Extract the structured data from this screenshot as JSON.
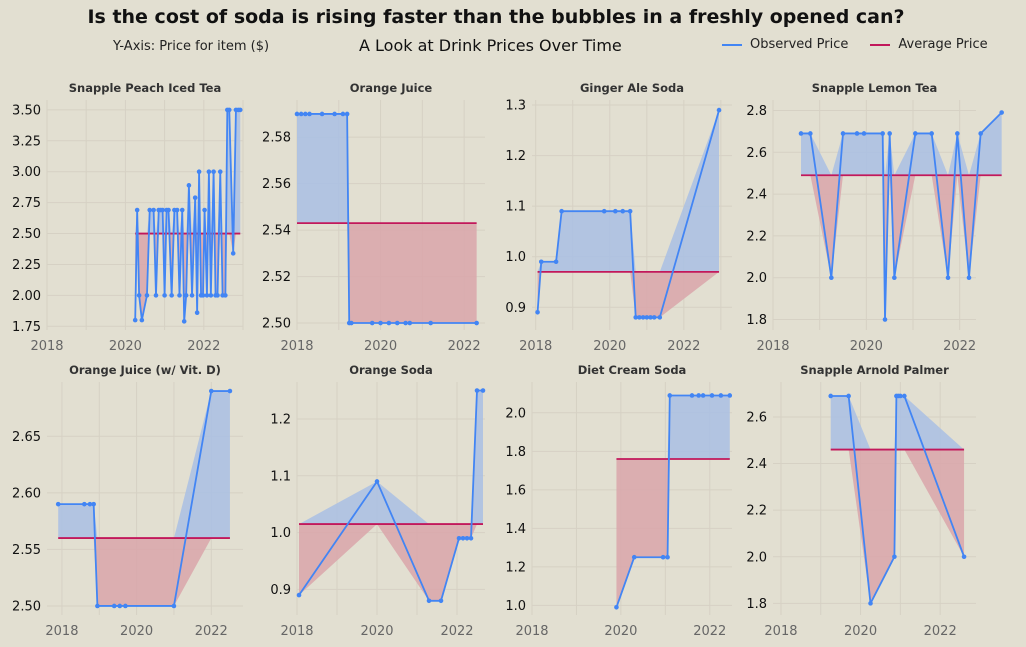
{
  "title": "Is the cost of soda is rising faster than the bubbles in a freshly opened can?",
  "subtitle": "A Look at Drink Prices Over Time",
  "y_axis_note": "Y-Axis: Price for item ($)",
  "legend": [
    {
      "label": "Observed Price",
      "color": "#4285f4"
    },
    {
      "label": "Average Price",
      "color": "#c2185b"
    }
  ],
  "colors": {
    "line": "#4285f4",
    "above_fill": "#a9bfe4",
    "below_fill": "#d9a6aa",
    "average": "#c2185b",
    "grid": "#d6d1c4",
    "background": "#e2dfd1"
  },
  "chart_data": [
    {
      "type": "line",
      "title": "Snapple Peach Iced Tea",
      "xlim": [
        2018,
        2023
      ],
      "ylim": [
        1.72,
        3.58
      ],
      "xticks": [
        2018,
        2020,
        2022
      ],
      "yticks": [
        1.75,
        2.0,
        2.25,
        2.5,
        2.75,
        3.0,
        3.25,
        3.5
      ],
      "ytick_labels": [
        "1.75",
        "2.00",
        "2.25",
        "2.50",
        "2.75",
        "3.00",
        "3.25",
        "3.50"
      ],
      "average": 2.5,
      "series": [
        {
          "x": [
            2020.25,
            2020.3,
            2020.35,
            2020.42,
            2020.55,
            2020.62,
            2020.72,
            2020.78,
            2020.85,
            2020.9,
            2020.95,
            2021.0,
            2021.05,
            2021.1,
            2021.18,
            2021.25,
            2021.32,
            2021.38,
            2021.45,
            2021.5,
            2021.55,
            2021.62,
            2021.7,
            2021.78,
            2021.83,
            2021.88,
            2021.93,
            2021.98,
            2022.02,
            2022.08,
            2022.13,
            2022.18,
            2022.25,
            2022.3,
            2022.35,
            2022.42,
            2022.48,
            2022.55,
            2022.6,
            2022.65,
            2022.75,
            2022.82,
            2022.88,
            2022.93
          ],
          "y": [
            1.8,
            2.69,
            2.0,
            1.8,
            2.0,
            2.69,
            2.69,
            2.0,
            2.69,
            2.69,
            2.69,
            2.0,
            2.69,
            2.69,
            2.0,
            2.69,
            2.69,
            2.0,
            2.69,
            1.79,
            2.0,
            2.89,
            2.0,
            2.79,
            1.86,
            3.0,
            2.0,
            2.0,
            2.69,
            2.0,
            3.0,
            2.0,
            3.0,
            2.0,
            2.0,
            3.0,
            2.0,
            2.0,
            3.5,
            3.5,
            2.34,
            3.5,
            3.5,
            3.5
          ]
        }
      ]
    },
    {
      "type": "line",
      "title": "Orange Juice",
      "xlim": [
        2018,
        2022.5
      ],
      "ylim": [
        2.497,
        2.596
      ],
      "xticks": [
        2018,
        2020,
        2022
      ],
      "yticks": [
        2.5,
        2.52,
        2.54,
        2.56,
        2.58
      ],
      "ytick_labels": [
        "2.50",
        "2.52",
        "2.54",
        "2.56",
        "2.58"
      ],
      "average": 2.543,
      "series": [
        {
          "x": [
            2018.0,
            2018.1,
            2018.2,
            2018.3,
            2018.6,
            2018.9,
            2019.1,
            2019.2,
            2019.25,
            2019.3,
            2019.8,
            2020.0,
            2020.2,
            2020.4,
            2020.6,
            2020.7,
            2021.2,
            2022.3
          ],
          "y": [
            2.59,
            2.59,
            2.59,
            2.59,
            2.59,
            2.59,
            2.59,
            2.59,
            2.5,
            2.5,
            2.5,
            2.5,
            2.5,
            2.5,
            2.5,
            2.5,
            2.5,
            2.5
          ]
        }
      ]
    },
    {
      "type": "line",
      "title": "Ginger Ale Soda",
      "xlim": [
        2017.9,
        2023.3
      ],
      "ylim": [
        0.855,
        1.31
      ],
      "xticks": [
        2018,
        2020,
        2022
      ],
      "yticks": [
        0.9,
        1.0,
        1.1,
        1.2,
        1.3
      ],
      "ytick_labels": [
        "0.9",
        "1.0",
        "1.1",
        "1.2",
        "1.3"
      ],
      "average": 0.97,
      "series": [
        {
          "x": [
            2018.05,
            2018.15,
            2018.55,
            2018.7,
            2019.85,
            2020.15,
            2020.35,
            2020.55,
            2020.7,
            2020.8,
            2020.9,
            2021.0,
            2021.1,
            2021.2,
            2021.35,
            2022.95
          ],
          "y": [
            0.89,
            0.99,
            0.99,
            1.09,
            1.09,
            1.09,
            1.09,
            1.09,
            0.88,
            0.88,
            0.88,
            0.88,
            0.88,
            0.88,
            0.88,
            1.29
          ]
        }
      ]
    },
    {
      "type": "line",
      "title": "Snapple Lemon Tea",
      "xlim": [
        2018,
        2022.35
      ],
      "ylim": [
        1.75,
        2.85
      ],
      "xticks": [
        2018,
        2020,
        2022
      ],
      "yticks": [
        1.8,
        2.0,
        2.2,
        2.4,
        2.6,
        2.8
      ],
      "ytick_labels": [
        "1.8",
        "2.0",
        "2.2",
        "2.4",
        "2.6",
        "2.8"
      ],
      "average": 2.49,
      "series": [
        {
          "x": [
            2018.6,
            2018.8,
            2019.25,
            2019.5,
            2019.8,
            2019.95,
            2020.35,
            2020.4,
            2020.5,
            2020.6,
            2021.05,
            2021.4,
            2021.75,
            2021.95,
            2022.2,
            2022.45,
            2022.9
          ],
          "y": [
            2.69,
            2.69,
            2.0,
            2.69,
            2.69,
            2.69,
            2.69,
            1.8,
            2.69,
            2.0,
            2.69,
            2.69,
            2.0,
            2.69,
            2.0,
            2.69,
            2.79
          ]
        }
      ]
    },
    {
      "type": "line",
      "title": "Orange Juice (w/ Vit. D)",
      "xlim": [
        2017.6,
        2022.85
      ],
      "ylim": [
        2.492,
        2.698
      ],
      "xticks": [
        2018,
        2020,
        2022
      ],
      "yticks": [
        2.5,
        2.55,
        2.6,
        2.65
      ],
      "ytick_labels": [
        "2.50",
        "2.55",
        "2.60",
        "2.65"
      ],
      "average": 2.56,
      "series": [
        {
          "x": [
            2017.9,
            2018.6,
            2018.75,
            2018.85,
            2018.95,
            2019.4,
            2019.55,
            2019.7,
            2021.0,
            2022.0,
            2022.5
          ],
          "y": [
            2.59,
            2.59,
            2.59,
            2.59,
            2.5,
            2.5,
            2.5,
            2.5,
            2.5,
            2.69,
            2.69
          ]
        }
      ]
    },
    {
      "type": "line",
      "title": "Orange Soda",
      "xlim": [
        2018,
        2022.7
      ],
      "ylim": [
        0.855,
        1.265
      ],
      "xticks": [
        2018,
        2020,
        2022
      ],
      "yticks": [
        0.9,
        1.0,
        1.1,
        1.2
      ],
      "ytick_labels": [
        "0.9",
        "1.0",
        "1.1",
        "1.2"
      ],
      "average": 1.015,
      "series": [
        {
          "x": [
            2018.05,
            2020.0,
            2021.3,
            2021.6,
            2022.05,
            2022.15,
            2022.25,
            2022.35,
            2022.5,
            2022.65
          ],
          "y": [
            0.89,
            1.09,
            0.88,
            0.88,
            0.99,
            0.99,
            0.99,
            0.99,
            1.25,
            1.25
          ]
        }
      ]
    },
    {
      "type": "line",
      "title": "Diet Cream Soda",
      "xlim": [
        2018,
        2022.5
      ],
      "ylim": [
        0.95,
        2.16
      ],
      "xticks": [
        2018,
        2020,
        2022
      ],
      "yticks": [
        1.0,
        1.2,
        1.4,
        1.6,
        1.8,
        2.0
      ],
      "ytick_labels": [
        "1.0",
        "1.2",
        "1.4",
        "1.6",
        "1.8",
        "2.0"
      ],
      "average": 1.76,
      "series": [
        {
          "x": [
            2019.9,
            2020.3,
            2020.95,
            2021.05,
            2021.1,
            2021.6,
            2021.75,
            2021.85,
            2022.05,
            2022.25,
            2022.45
          ],
          "y": [
            0.99,
            1.25,
            1.25,
            1.25,
            2.09,
            2.09,
            2.09,
            2.09,
            2.09,
            2.09,
            2.09
          ]
        }
      ]
    },
    {
      "type": "line",
      "title": "Snapple Arnold Palmer",
      "xlim": [
        2017.8,
        2022.9
      ],
      "ylim": [
        1.75,
        2.75
      ],
      "xticks": [
        2018,
        2020,
        2022
      ],
      "yticks": [
        1.8,
        2.0,
        2.2,
        2.4,
        2.6
      ],
      "ytick_labels": [
        "1.8",
        "2.0",
        "2.2",
        "2.4",
        "2.6"
      ],
      "average": 2.46,
      "series": [
        {
          "x": [
            2019.25,
            2019.7,
            2020.25,
            2020.85,
            2020.9,
            2020.95,
            2021.0,
            2021.1,
            2022.6
          ],
          "y": [
            2.69,
            2.69,
            1.8,
            2.0,
            2.69,
            2.69,
            2.69,
            2.69,
            2.0
          ]
        }
      ]
    }
  ]
}
